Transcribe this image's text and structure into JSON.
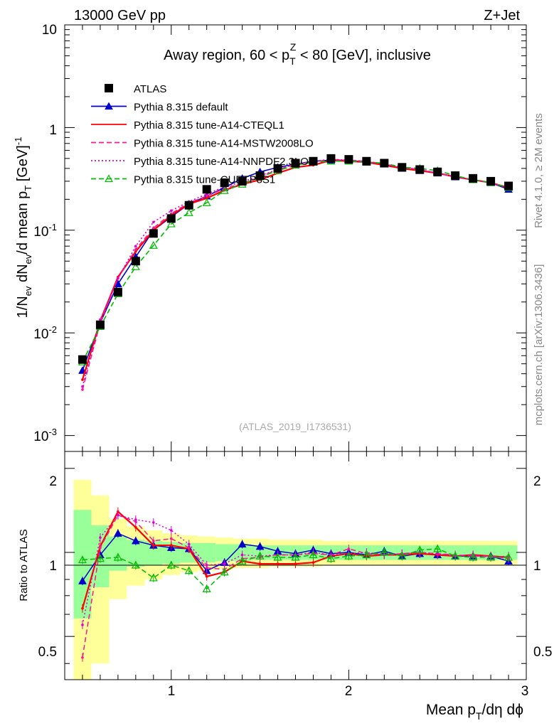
{
  "header": {
    "left": "13000 GeV pp",
    "right": "Z+Jet"
  },
  "side": {
    "rivet": "Rivet 4.1.0, ≥ 2M events",
    "mcplots": "mcplots.cern.ch [arXiv:1306.3436]"
  },
  "chart_data": [
    {
      "type": "line",
      "title_parts": [
        "Away region, 60 < p",
        "T",
        "Z",
        " < 80 [GeV], inclusive"
      ],
      "watermark": "(ATLAS_2019_I1736531)",
      "ylabel_parts": [
        "1/N",
        "ev",
        " dN",
        "ev",
        "/d mean p",
        "T",
        " [GeV]",
        "-1"
      ],
      "yscale": "log",
      "ylim": [
        0.0007,
        10
      ],
      "xlim": [
        0.4,
        3.0
      ],
      "ytick_labels": [
        "10",
        "1",
        "10-1",
        "10-2",
        "10-3"
      ],
      "legend_position": "top-left",
      "x": [
        0.5,
        0.6,
        0.7,
        0.8,
        0.9,
        1.0,
        1.1,
        1.2,
        1.3,
        1.4,
        1.5,
        1.6,
        1.7,
        1.8,
        1.9,
        2.0,
        2.1,
        2.2,
        2.3,
        2.4,
        2.5,
        2.6,
        2.7,
        2.8,
        2.9
      ],
      "series": [
        {
          "name": "ATLAS",
          "color": "#000000",
          "style": "marker-square",
          "values": [
            0.0055,
            0.012,
            0.025,
            0.05,
            0.093,
            0.13,
            0.175,
            0.25,
            0.29,
            0.3,
            0.34,
            0.4,
            0.45,
            0.47,
            0.5,
            0.49,
            0.47,
            0.45,
            0.41,
            0.39,
            0.37,
            0.34,
            0.32,
            0.3,
            0.27
          ]
        },
        {
          "name": "Pythia 8.315 default",
          "color": "#0000cc",
          "style": "solid-triangle",
          "values": [
            0.0043,
            0.0125,
            0.03,
            0.055,
            0.1,
            0.135,
            0.18,
            0.215,
            0.26,
            0.32,
            0.37,
            0.41,
            0.44,
            0.47,
            0.48,
            0.48,
            0.46,
            0.44,
            0.4,
            0.38,
            0.36,
            0.33,
            0.31,
            0.29,
            0.25
          ]
        },
        {
          "name": "Pythia 8.315 tune-A14-CTEQL1",
          "color": "#ff0000",
          "style": "solid",
          "values": [
            0.0035,
            0.013,
            0.035,
            0.062,
            0.1,
            0.14,
            0.18,
            0.205,
            0.245,
            0.28,
            0.31,
            0.36,
            0.41,
            0.43,
            0.48,
            0.47,
            0.46,
            0.43,
            0.4,
            0.38,
            0.36,
            0.33,
            0.31,
            0.29,
            0.26
          ]
        },
        {
          "name": "Pythia 8.315 tune-A14-MSTW2008LO",
          "color": "#ff1493",
          "style": "dashed",
          "values": [
            0.0028,
            0.0125,
            0.034,
            0.065,
            0.105,
            0.145,
            0.185,
            0.215,
            0.255,
            0.285,
            0.33,
            0.39,
            0.44,
            0.46,
            0.49,
            0.48,
            0.47,
            0.44,
            0.41,
            0.39,
            0.36,
            0.33,
            0.31,
            0.29,
            0.26
          ]
        },
        {
          "name": "Pythia 8.315 tune-A14-NNPDF2.3LO",
          "color": "#e000d0",
          "style": "dotted",
          "values": [
            0.003,
            0.0135,
            0.034,
            0.07,
            0.12,
            0.155,
            0.19,
            0.225,
            0.265,
            0.295,
            0.34,
            0.39,
            0.44,
            0.47,
            0.49,
            0.48,
            0.47,
            0.44,
            0.41,
            0.39,
            0.36,
            0.33,
            0.31,
            0.29,
            0.26
          ]
        },
        {
          "name": "Pythia 8.315 tune-CUETP8S1",
          "color": "#00bb00",
          "style": "dashed-triangle-open",
          "values": [
            0.0052,
            0.0115,
            0.024,
            0.044,
            0.071,
            0.115,
            0.148,
            0.185,
            0.243,
            0.28,
            0.33,
            0.38,
            0.43,
            0.46,
            0.47,
            0.47,
            0.46,
            0.45,
            0.41,
            0.4,
            0.38,
            0.34,
            0.31,
            0.29,
            0.26
          ]
        }
      ]
    },
    {
      "type": "line",
      "ylabel": "Ratio to ATLAS",
      "xlabel_parts": [
        "Mean p",
        "T",
        "/dη dϕ"
      ],
      "ylim": [
        0.35,
        2.3
      ],
      "xlim": [
        0.4,
        3.0
      ],
      "ytick_labels": [
        "2",
        "1",
        "0.5"
      ],
      "xtick_labels": [
        "1",
        "2",
        "3"
      ],
      "x": [
        0.5,
        0.6,
        0.7,
        0.8,
        0.9,
        1.0,
        1.1,
        1.2,
        1.3,
        1.4,
        1.5,
        1.6,
        1.7,
        1.8,
        1.9,
        2.0,
        2.1,
        2.2,
        2.3,
        2.4,
        2.5,
        2.6,
        2.7,
        2.8,
        2.9
      ],
      "bands": {
        "yellow_halfwidth": [
          0.82,
          0.6,
          0.32,
          0.24,
          0.2,
          0.17,
          0.15,
          0.14,
          0.13,
          0.12,
          0.12,
          0.11,
          0.11,
          0.11,
          0.1,
          0.1,
          0.1,
          0.1,
          0.1,
          0.1,
          0.1,
          0.1,
          0.1,
          0.1,
          0.1
        ],
        "green_halfwidth": [
          0.42,
          0.25,
          0.14,
          0.11,
          0.1,
          0.09,
          0.08,
          0.08,
          0.07,
          0.07,
          0.06,
          0.06,
          0.06,
          0.06,
          0.06,
          0.06,
          0.06,
          0.06,
          0.06,
          0.06,
          0.06,
          0.06,
          0.06,
          0.06,
          0.06
        ]
      },
      "series": [
        {
          "name": "Pythia 8.315 default",
          "color": "#0000cc",
          "style": "solid-triangle",
          "values": [
            0.79,
            0.98,
            1.17,
            1.1,
            1.06,
            1.04,
            1.03,
            0.86,
            0.92,
            1.07,
            1.05,
            1.01,
            0.99,
            1.02,
            0.99,
            1.0,
            0.98,
            1.01,
            0.97,
            0.99,
            0.98,
            0.97,
            0.97,
            0.97,
            0.93
          ]
        },
        {
          "name": "Pythia 8.315 tune-A14-CTEQL1",
          "color": "#ff0000",
          "style": "solid",
          "values": [
            0.63,
            1.05,
            1.4,
            1.23,
            1.06,
            1.06,
            1.03,
            0.82,
            0.85,
            0.93,
            0.91,
            0.91,
            0.91,
            0.92,
            0.97,
            0.99,
            0.97,
            0.98,
            0.98,
            0.99,
            0.98,
            0.97,
            0.98,
            0.97,
            0.96
          ]
        },
        {
          "name": "Pythia 8.315 tune-A14-MSTW2008LO",
          "color": "#ff1493",
          "style": "dashed",
          "values": [
            0.42,
            1.04,
            1.36,
            1.29,
            1.1,
            1.12,
            1.04,
            0.88,
            0.87,
            0.95,
            0.96,
            0.98,
            0.98,
            0.99,
            0.98,
            1.03,
            0.99,
            0.98,
            0.99,
            1.0,
            0.99,
            0.98,
            0.97,
            0.97,
            0.95
          ]
        },
        {
          "name": "Pythia 8.315 tune-A14-NNPDF2.3LO",
          "color": "#e000d0",
          "style": "dotted",
          "values": [
            0.55,
            1.13,
            1.36,
            1.31,
            1.28,
            1.2,
            1.07,
            0.9,
            0.91,
            0.98,
            0.97,
            0.98,
            0.98,
            1.0,
            0.98,
            0.99,
            1.0,
            0.98,
            0.99,
            1.0,
            0.99,
            0.97,
            0.98,
            0.96,
            0.97
          ]
        },
        {
          "name": "Pythia 8.315 tune-CUETP8S1",
          "color": "#00bb00",
          "style": "dashed-triangle-open",
          "values": [
            0.94,
            0.95,
            0.96,
            0.9,
            0.81,
            0.9,
            0.86,
            0.74,
            0.85,
            0.93,
            0.97,
            0.96,
            0.96,
            0.98,
            0.95,
            0.97,
            0.98,
            1.0,
            0.97,
            1.02,
            1.03,
            0.97,
            0.96,
            0.96,
            0.96
          ]
        }
      ]
    }
  ]
}
